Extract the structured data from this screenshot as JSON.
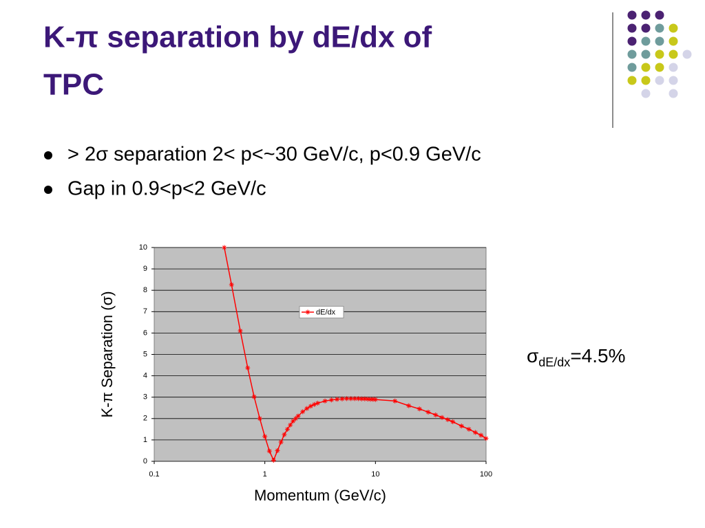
{
  "slide": {
    "title_line1": "K-π separation by dE/dx of",
    "title_line2": "TPC",
    "bullets": [
      "> 2σ separation 2< p<~30 GeV/c,  p<0.9 GeV/c",
      "Gap in 0.9<p<2 GeV/c"
    ],
    "annotation": {
      "symbol": "σ",
      "subscript": "dE/dx",
      "text": "=4.5%"
    }
  },
  "chart_data": {
    "type": "line",
    "xlabel": "Momentum (GeV/c)",
    "ylabel": "K-π Separation (σ)",
    "xscale": "log",
    "xlim": [
      0.1,
      100
    ],
    "xticks": [
      0.1,
      1,
      10,
      100
    ],
    "ylim": [
      0,
      10
    ],
    "yticks": [
      0,
      1,
      2,
      3,
      4,
      5,
      6,
      7,
      8,
      9,
      10
    ],
    "grid": true,
    "legend_position": "center",
    "background": "#c0c0c0",
    "x": [
      0.43,
      0.5,
      0.6,
      0.7,
      0.8,
      0.9,
      1,
      1.1,
      1.2,
      1.3,
      1.4,
      1.5,
      1.6,
      1.7,
      1.8,
      1.9,
      2,
      2.2,
      2.4,
      2.6,
      2.8,
      3,
      3.5,
      4,
      4.5,
      5,
      5.5,
      6,
      6.5,
      7,
      7.5,
      8,
      8.5,
      9,
      9.5,
      10,
      15,
      20,
      25,
      30,
      35,
      40,
      45,
      50,
      60,
      70,
      80,
      90,
      100
    ],
    "series": [
      {
        "name": "dE/dx",
        "color": "#ff0000",
        "values": [
          10,
          8.26,
          6.1,
          4.37,
          3.02,
          2.0,
          1.16,
          0.48,
          0.05,
          0.5,
          0.9,
          1.25,
          1.5,
          1.7,
          1.88,
          2.0,
          2.12,
          2.32,
          2.47,
          2.58,
          2.66,
          2.72,
          2.82,
          2.87,
          2.9,
          2.92,
          2.93,
          2.93,
          2.93,
          2.93,
          2.92,
          2.92,
          2.91,
          2.9,
          2.9,
          2.89,
          2.82,
          2.6,
          2.45,
          2.3,
          2.17,
          2.05,
          1.95,
          1.85,
          1.65,
          1.5,
          1.35,
          1.22,
          1.07
        ]
      }
    ]
  }
}
